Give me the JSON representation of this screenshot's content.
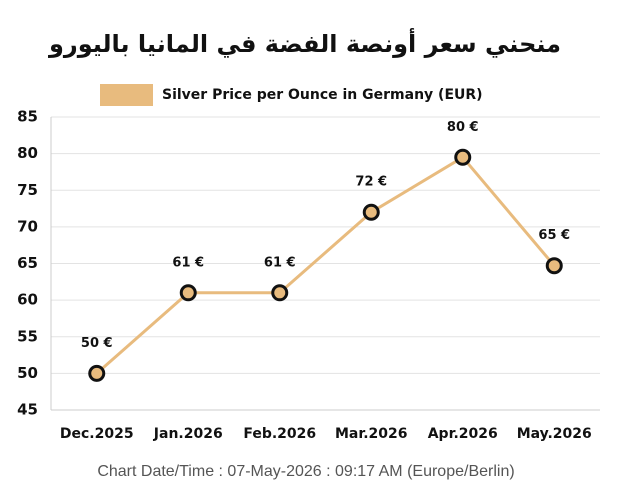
{
  "chart_data": {
    "type": "line",
    "title": "منحني سعر أونصة الفضة في المانيا باليورو",
    "categories": [
      "Dec.2025",
      "Jan.2026",
      "Feb.2026",
      "Mar.2026",
      "Apr.2026",
      "May.2026"
    ],
    "series": [
      {
        "name": "Silver Price per Ounce in Germany (EUR)",
        "color": "#e8bb7e",
        "values": [
          50,
          61,
          61,
          72,
          79.5,
          64.7
        ],
        "value_labels": [
          "50 €",
          "61 €",
          "61 €",
          "72 €",
          "80 €",
          "65 €"
        ]
      }
    ],
    "ylim": [
      45,
      85
    ],
    "yticks": [
      45,
      50,
      55,
      60,
      65,
      70,
      75,
      80,
      85
    ],
    "grid": true,
    "legend": "top",
    "footer": "Chart Date/Time : 07-May-2026 : 09:17 AM (Europe/Berlin)"
  }
}
